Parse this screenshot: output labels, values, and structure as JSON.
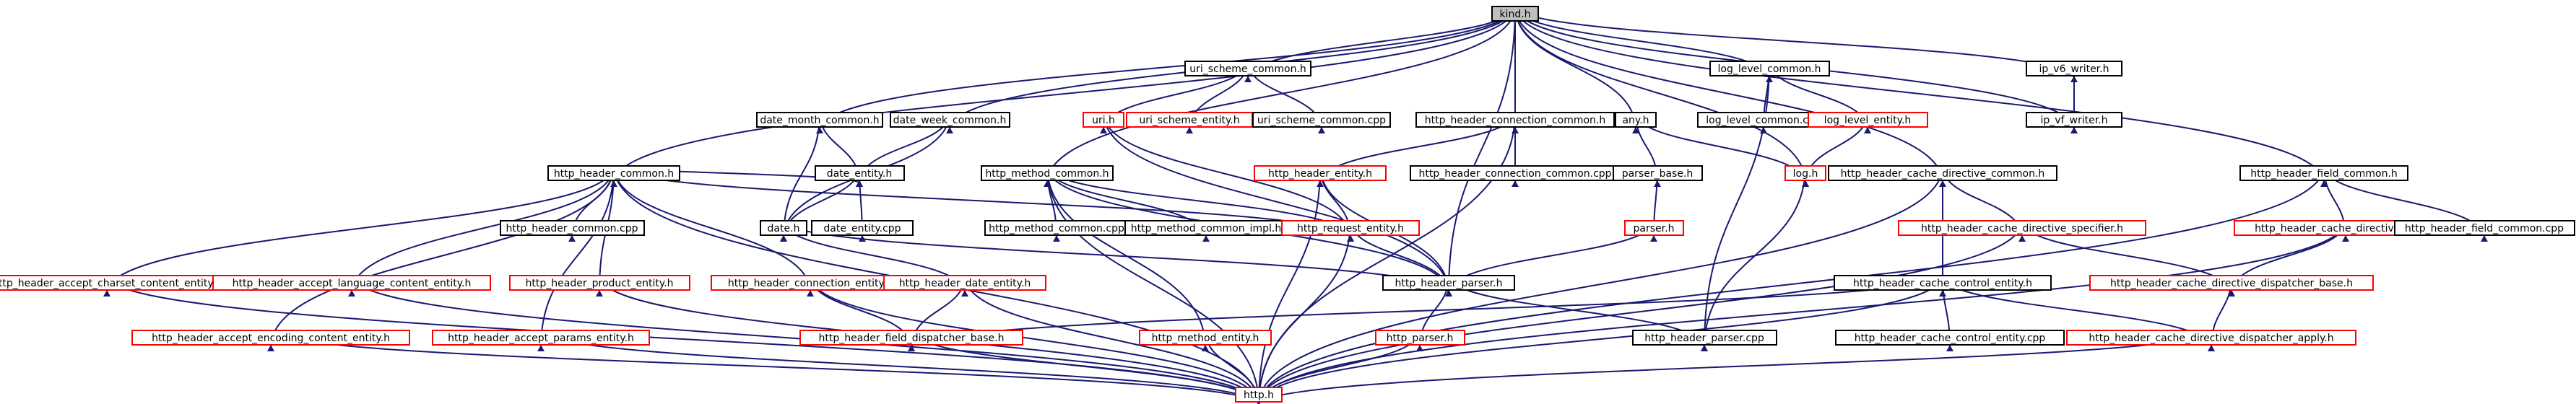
{
  "colors": {
    "edge": "#191970",
    "black_border": "#000000",
    "red_border": "#ff0000",
    "root_fill": "#bfbfbf",
    "node_fill": "#ffffff"
  },
  "nodes": [
    {
      "id": "kind_h",
      "label": "kind.h",
      "style": "root"
    },
    {
      "id": "uri_scheme_common_h",
      "label": "uri_scheme_common.h",
      "style": "black"
    },
    {
      "id": "log_level_common_h",
      "label": "log_level_common.h",
      "style": "black"
    },
    {
      "id": "ip_v6_writer_h",
      "label": "ip_v6_writer.h",
      "style": "black"
    },
    {
      "id": "date_month_common_h",
      "label": "date_month_common.h",
      "style": "black"
    },
    {
      "id": "date_week_common_h",
      "label": "date_week_common.h",
      "style": "black"
    },
    {
      "id": "uri_h",
      "label": "uri.h",
      "style": "red"
    },
    {
      "id": "uri_scheme_entity_h",
      "label": "uri_scheme_entity.h",
      "style": "red"
    },
    {
      "id": "uri_scheme_common_cpp",
      "label": "uri_scheme_common.cpp",
      "style": "black"
    },
    {
      "id": "http_header_connection_common_h",
      "label": "http_header_connection_common.h",
      "style": "black"
    },
    {
      "id": "any_h",
      "label": "any.h",
      "style": "black"
    },
    {
      "id": "log_level_common_cpp",
      "label": "log_level_common.cpp",
      "style": "black"
    },
    {
      "id": "log_level_entity_h",
      "label": "log_level_entity.h",
      "style": "red"
    },
    {
      "id": "ip_v_writer_h",
      "label": "ip_vf_writer.h",
      "style": "black"
    },
    {
      "id": "http_header_common_h",
      "label": "http_header_common.h",
      "style": "black"
    },
    {
      "id": "date_entity_h",
      "label": "date_entity.h",
      "style": "black"
    },
    {
      "id": "http_method_common_h",
      "label": "http_method_common.h",
      "style": "black"
    },
    {
      "id": "http_header_entity_h",
      "label": "http_header_entity.h",
      "style": "red"
    },
    {
      "id": "http_header_connection_common_cpp",
      "label": "http_header_connection_common.cpp",
      "style": "black"
    },
    {
      "id": "parser_base_h",
      "label": "parser_base.h",
      "style": "black"
    },
    {
      "id": "log_h",
      "label": "log.h",
      "style": "red"
    },
    {
      "id": "http_header_cache_directive_common_h",
      "label": "http_header_cache_directive_common.h",
      "style": "black"
    },
    {
      "id": "http_header_field_common_h",
      "label": "http_header_field_common.h",
      "style": "black"
    },
    {
      "id": "http_header_common_cpp",
      "label": "http_header_common.cpp",
      "style": "black"
    },
    {
      "id": "date_h",
      "label": "date.h",
      "style": "black"
    },
    {
      "id": "date_entity_cpp",
      "label": "date_entity.cpp",
      "style": "black"
    },
    {
      "id": "http_method_common_cpp",
      "label": "http_method_common.cpp",
      "style": "black"
    },
    {
      "id": "http_method_common_impl_h",
      "label": "http_method_common_impl.h",
      "style": "black"
    },
    {
      "id": "http_request_entity_h",
      "label": "http_request_entity.h",
      "style": "red"
    },
    {
      "id": "parser_h",
      "label": "parser.h",
      "style": "red"
    },
    {
      "id": "http_header_cache_directive_specifier_h",
      "label": "http_header_cache_directive_specifier.h",
      "style": "red"
    },
    {
      "id": "http_header_cache_directive_field_h",
      "label": "http_header_cache_directive_field.h",
      "style": "red"
    },
    {
      "id": "http_header_field_common_cpp",
      "label": "http_header_field_common.cpp",
      "style": "black"
    },
    {
      "id": "http_header_accept_charset_content_entity_h",
      "label": "http_header_accept_charset_content_entity.h",
      "style": "red"
    },
    {
      "id": "http_header_accept_language_content_entity_h",
      "label": "http_header_accept_language_content_entity.h",
      "style": "red"
    },
    {
      "id": "http_header_product_entity_h",
      "label": "http_header_product_entity.h",
      "style": "red"
    },
    {
      "id": "http_header_connection_entity_h",
      "label": "http_header_connection_entity.h",
      "style": "red"
    },
    {
      "id": "http_header_date_entity_h",
      "label": "http_header_date_entity.h",
      "style": "red"
    },
    {
      "id": "http_header_parser_h",
      "label": "http_header_parser.h",
      "style": "black"
    },
    {
      "id": "http_header_cache_control_entity_h",
      "label": "http_header_cache_control_entity.h",
      "style": "black"
    },
    {
      "id": "http_header_cache_directive_dispatcher_base_h",
      "label": "http_header_cache_directive_dispatcher_base.h",
      "style": "red"
    },
    {
      "id": "http_header_accept_encoding_content_entity_h",
      "label": "http_header_accept_encoding_content_entity.h",
      "style": "red"
    },
    {
      "id": "http_header_accept_params_entity_h",
      "label": "http_header_accept_params_entity.h",
      "style": "red"
    },
    {
      "id": "http_header_field_dispatcher_base_h",
      "label": "http_header_field_dispatcher_base.h",
      "style": "red"
    },
    {
      "id": "http_method_entity_h",
      "label": "http_method_entity.h",
      "style": "red"
    },
    {
      "id": "http_parser_h",
      "label": "http_parser.h",
      "style": "red"
    },
    {
      "id": "http_header_parser_cpp",
      "label": "http_header_parser.cpp",
      "style": "black"
    },
    {
      "id": "http_header_cache_control_entity_cpp",
      "label": "http_header_cache_control_entity.cpp",
      "style": "black"
    },
    {
      "id": "http_header_cache_directive_dispatcher_apply_h",
      "label": "http_header_cache_directive_dispatcher_apply.h",
      "style": "red"
    },
    {
      "id": "http_h",
      "label": "http.h",
      "style": "red"
    }
  ],
  "edges": [
    [
      "kind_h",
      "uri_scheme_common_h"
    ],
    [
      "kind_h",
      "log_level_common_h"
    ],
    [
      "kind_h",
      "ip_v6_writer_h"
    ],
    [
      "kind_h",
      "ip_v_writer_h"
    ],
    [
      "kind_h",
      "date_month_common_h"
    ],
    [
      "kind_h",
      "date_week_common_h"
    ],
    [
      "kind_h",
      "http_method_common_h"
    ],
    [
      "kind_h",
      "http_header_connection_common_h"
    ],
    [
      "kind_h",
      "any_h"
    ],
    [
      "kind_h",
      "http_header_common_h"
    ],
    [
      "kind_h",
      "http_header_cache_directive_common_h"
    ],
    [
      "kind_h",
      "http_header_field_common_h"
    ],
    [
      "kind_h",
      "http_header_parser_h"
    ],
    [
      "kind_h",
      "log_h"
    ],
    [
      "uri_scheme_common_h",
      "uri_h"
    ],
    [
      "uri_scheme_common_h",
      "uri_scheme_entity_h"
    ],
    [
      "uri_scheme_common_h",
      "uri_scheme_common_cpp"
    ],
    [
      "log_level_common_h",
      "log_level_common_cpp"
    ],
    [
      "log_level_common_h",
      "log_level_entity_h"
    ],
    [
      "log_level_common_h",
      "http_header_parser_cpp"
    ],
    [
      "ip_v6_writer_h",
      "ip_v_writer_h"
    ],
    [
      "date_month_common_h",
      "date_entity_h"
    ],
    [
      "date_month_common_h",
      "date_h"
    ],
    [
      "date_week_common_h",
      "date_entity_h"
    ],
    [
      "date_week_common_h",
      "date_h"
    ],
    [
      "uri_h",
      "http_header_parser_h"
    ],
    [
      "uri_h",
      "http_request_entity_h"
    ],
    [
      "http_header_connection_common_h",
      "http_header_entity_h"
    ],
    [
      "http_header_connection_common_h",
      "http_header_connection_common_cpp"
    ],
    [
      "http_header_connection_common_h",
      "http_h"
    ],
    [
      "any_h",
      "parser_base_h"
    ],
    [
      "any_h",
      "log_h"
    ],
    [
      "log_level_entity_h",
      "log_h"
    ],
    [
      "http_header_common_h",
      "date_entity_h"
    ],
    [
      "http_header_common_h",
      "http_header_common_cpp"
    ],
    [
      "http_header_common_h",
      "http_header_accept_charset_content_entity_h"
    ],
    [
      "http_header_common_h",
      "http_header_accept_language_content_entity_h"
    ],
    [
      "http_header_common_h",
      "http_header_product_entity_h"
    ],
    [
      "http_header_common_h",
      "http_header_connection_entity_h"
    ],
    [
      "http_header_common_h",
      "http_header_accept_encoding_content_entity_h"
    ],
    [
      "http_header_common_h",
      "http_header_accept_params_entity_h"
    ],
    [
      "http_header_common_h",
      "http_request_entity_h"
    ],
    [
      "http_header_common_h",
      "http_h"
    ],
    [
      "date_entity_h",
      "date_h"
    ],
    [
      "date_entity_h",
      "date_entity_cpp"
    ],
    [
      "http_method_common_h",
      "http_method_common_cpp"
    ],
    [
      "http_method_common_h",
      "http_method_common_impl_h"
    ],
    [
      "http_method_common_h",
      "http_request_entity_h"
    ],
    [
      "http_method_common_h",
      "http_method_entity_h"
    ],
    [
      "http_method_common_h",
      "http_header_parser_h"
    ],
    [
      "http_method_common_h",
      "http_h"
    ],
    [
      "http_header_entity_h",
      "http_request_entity_h"
    ],
    [
      "http_header_entity_h",
      "http_header_parser_h"
    ],
    [
      "http_header_entity_h",
      "http_h"
    ],
    [
      "parser_base_h",
      "parser_h"
    ],
    [
      "log_h",
      "http_header_parser_cpp"
    ],
    [
      "http_header_cache_directive_common_h",
      "http_header_cache_directive_specifier_h"
    ],
    [
      "http_header_cache_directive_common_h",
      "http_header_cache_control_entity_h"
    ],
    [
      "http_header_cache_directive_common_h",
      "http_h"
    ],
    [
      "http_header_field_common_h",
      "http_header_cache_directive_field_h"
    ],
    [
      "http_header_field_common_h",
      "http_header_field_common_cpp"
    ],
    [
      "http_header_field_common_h",
      "http_h"
    ],
    [
      "date_h",
      "http_header_date_entity_h"
    ],
    [
      "date_h",
      "http_header_parser_h"
    ],
    [
      "http_request_entity_h",
      "http_header_parser_h"
    ],
    [
      "http_request_entity_h",
      "http_h"
    ],
    [
      "parser_h",
      "http_header_parser_h"
    ],
    [
      "http_header_cache_directive_specifier_h",
      "http_header_cache_directive_dispatcher_base_h"
    ],
    [
      "http_header_cache_directive_specifier_h",
      "http_h"
    ],
    [
      "http_header_cache_directive_field_h",
      "http_header_cache_directive_dispatcher_base_h"
    ],
    [
      "http_header_cache_directive_field_h",
      "http_h"
    ],
    [
      "http_header_accept_charset_content_entity_h",
      "http_h"
    ],
    [
      "http_header_accept_language_content_entity_h",
      "http_h"
    ],
    [
      "http_header_product_entity_h",
      "http_h"
    ],
    [
      "http_header_connection_entity_h",
      "http_header_field_dispatcher_base_h"
    ],
    [
      "http_header_connection_entity_h",
      "http_h"
    ],
    [
      "http_header_date_entity_h",
      "http_header_field_dispatcher_base_h"
    ],
    [
      "http_header_date_entity_h",
      "http_h"
    ],
    [
      "http_header_parser_h",
      "http_parser_h"
    ],
    [
      "http_header_parser_h",
      "http_header_parser_cpp"
    ],
    [
      "http_header_cache_control_entity_h",
      "http_header_cache_control_entity_cpp"
    ],
    [
      "http_header_cache_control_entity_h",
      "http_header_cache_directive_dispatcher_apply_h"
    ],
    [
      "http_header_cache_control_entity_h",
      "http_header_field_dispatcher_base_h"
    ],
    [
      "http_header_cache_control_entity_h",
      "http_h"
    ],
    [
      "http_header_cache_directive_dispatcher_base_h",
      "http_header_cache_directive_dispatcher_apply_h"
    ],
    [
      "http_header_accept_encoding_content_entity_h",
      "http_h"
    ],
    [
      "http_header_accept_params_entity_h",
      "http_h"
    ],
    [
      "http_header_field_dispatcher_base_h",
      "http_h"
    ],
    [
      "http_method_entity_h",
      "http_h"
    ],
    [
      "http_parser_h",
      "http_h"
    ],
    [
      "http_header_cache_directive_dispatcher_apply_h",
      "http_h"
    ]
  ]
}
